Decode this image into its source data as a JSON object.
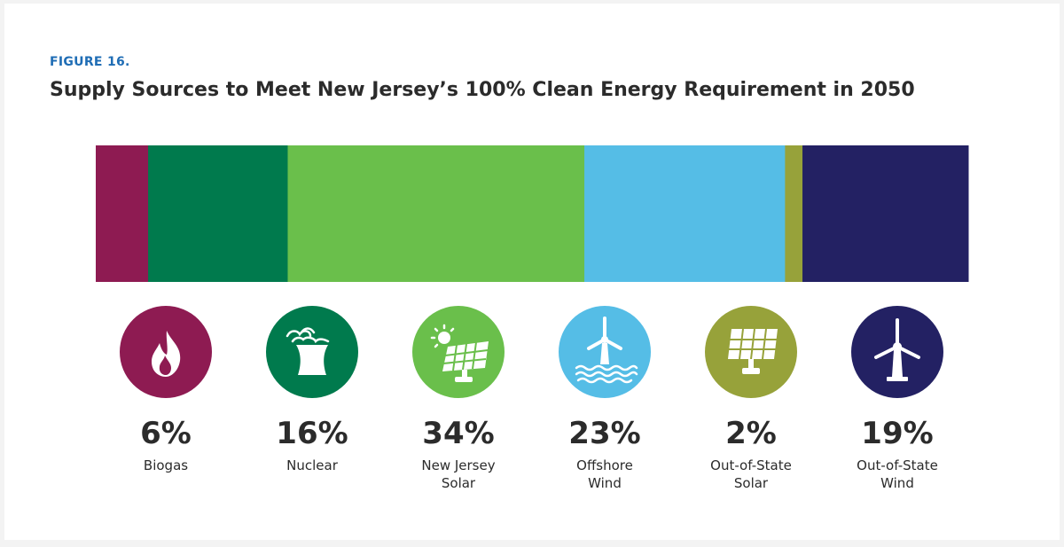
{
  "figure_label": "FIGURE 16.",
  "chart_data": {
    "type": "bar",
    "orientation": "stacked-horizontal",
    "title": "Supply Sources to Meet New Jersey’s 100% Clean Energy Requirement in 2050",
    "unit": "%",
    "series": [
      {
        "label_lines": [
          "Biogas"
        ],
        "value": 6,
        "value_label": "6%",
        "color": "#8e1b52",
        "icon": "flame-icon"
      },
      {
        "label_lines": [
          "Nuclear"
        ],
        "value": 16,
        "value_label": "16%",
        "color": "#007a4d",
        "icon": "cooling-tower-icon"
      },
      {
        "label_lines": [
          "New Jersey",
          "Solar"
        ],
        "value": 34,
        "value_label": "34%",
        "color": "#6abf4b",
        "icon": "solar-panel-sun-icon"
      },
      {
        "label_lines": [
          "Offshore",
          "Wind"
        ],
        "value": 23,
        "value_label": "23%",
        "color": "#55bde6",
        "icon": "offshore-wind-turbine-icon"
      },
      {
        "label_lines": [
          "Out-of-State",
          "Solar"
        ],
        "value": 2,
        "value_label": "2%",
        "color": "#97a23a",
        "icon": "solar-panel-icon"
      },
      {
        "label_lines": [
          "Out-of-State",
          "Wind"
        ],
        "value": 19,
        "value_label": "19%",
        "color": "#232163",
        "icon": "wind-turbine-icon"
      }
    ]
  }
}
